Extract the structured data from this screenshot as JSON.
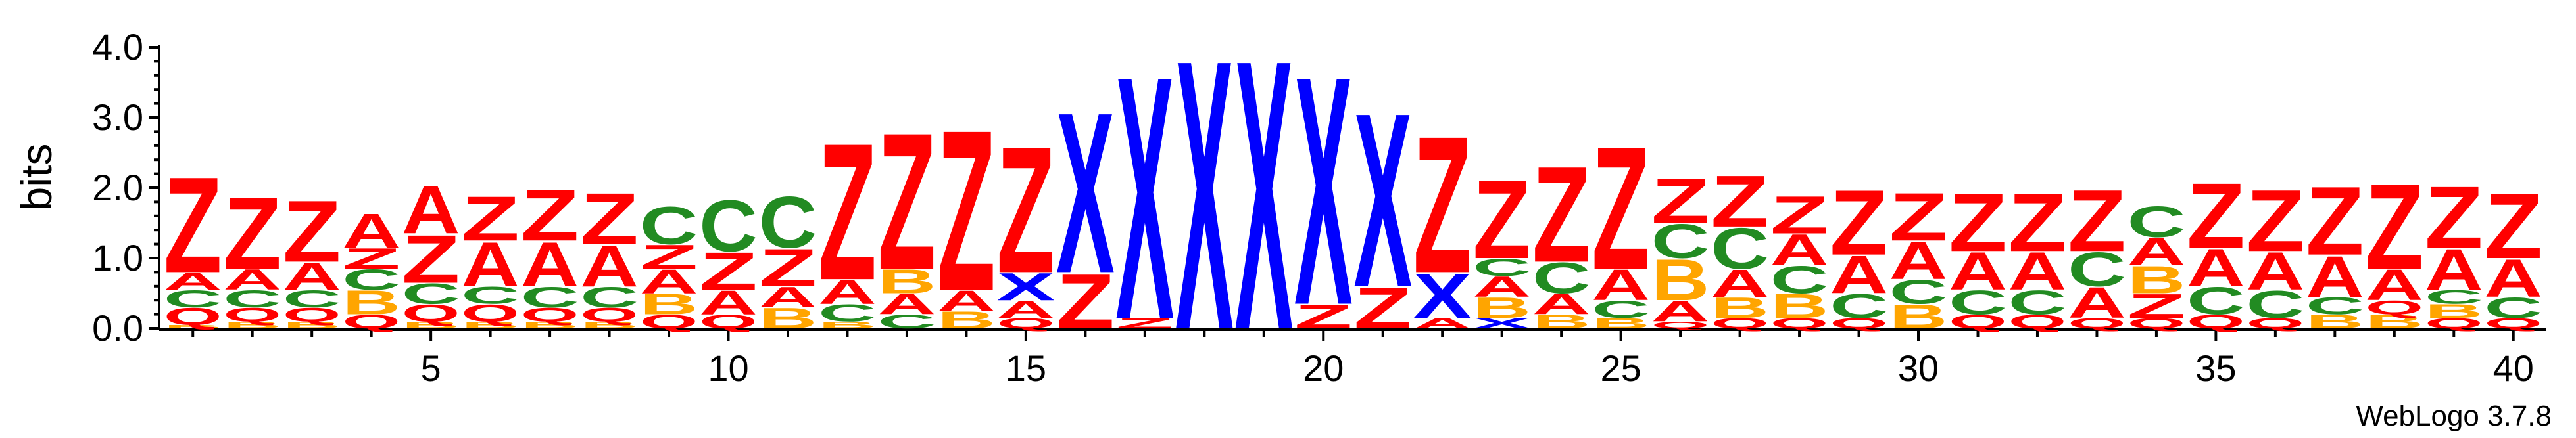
{
  "chart_data": {
    "type": "sequence-logo",
    "ylabel": "bits",
    "ylim": [
      0,
      4.0
    ],
    "yticks": [
      "0.0",
      "1.0",
      "2.0",
      "3.0",
      "4.0"
    ],
    "xlim": [
      1,
      40
    ],
    "xticks": [
      5,
      10,
      15,
      20,
      25,
      30,
      35,
      40
    ],
    "credit": "WebLogo 3.7.8",
    "colors": {
      "Z": "#ff0000",
      "A": "#ff0000",
      "Q": "#ff0000",
      "X": "#0000ff",
      "C": "#228b22",
      "B": "#ffa500"
    },
    "positions": [
      {
        "pos": 1,
        "stack": [
          [
            "B",
            0.05
          ],
          [
            "Q",
            0.25
          ],
          [
            "C",
            0.25
          ],
          [
            "A",
            0.25
          ],
          [
            "Z",
            1.4
          ]
        ]
      },
      {
        "pos": 2,
        "stack": [
          [
            "B",
            0.1
          ],
          [
            "Q",
            0.2
          ],
          [
            "C",
            0.25
          ],
          [
            "A",
            0.3
          ],
          [
            "Z",
            1.05
          ]
        ]
      },
      {
        "pos": 3,
        "stack": [
          [
            "B",
            0.1
          ],
          [
            "Q",
            0.2
          ],
          [
            "C",
            0.25
          ],
          [
            "A",
            0.4
          ],
          [
            "Z",
            0.9
          ]
        ]
      },
      {
        "pos": 4,
        "stack": [
          [
            "Q",
            0.2
          ],
          [
            "B",
            0.35
          ],
          [
            "C",
            0.3
          ],
          [
            "Z",
            0.3
          ],
          [
            "A",
            0.5
          ]
        ]
      },
      {
        "pos": 5,
        "stack": [
          [
            "B",
            0.1
          ],
          [
            "Q",
            0.25
          ],
          [
            "C",
            0.3
          ],
          [
            "Z",
            0.7
          ],
          [
            "A",
            0.7
          ]
        ]
      },
      {
        "pos": 6,
        "stack": [
          [
            "B",
            0.1
          ],
          [
            "Q",
            0.25
          ],
          [
            "C",
            0.25
          ],
          [
            "A",
            0.65
          ],
          [
            "Z",
            0.65
          ]
        ]
      },
      {
        "pos": 7,
        "stack": [
          [
            "B",
            0.1
          ],
          [
            "Q",
            0.2
          ],
          [
            "C",
            0.3
          ],
          [
            "A",
            0.65
          ],
          [
            "Z",
            0.75
          ]
        ]
      },
      {
        "pos": 8,
        "stack": [
          [
            "B",
            0.1
          ],
          [
            "Q",
            0.2
          ],
          [
            "C",
            0.3
          ],
          [
            "A",
            0.6
          ],
          [
            "Z",
            0.75
          ]
        ]
      },
      {
        "pos": 9,
        "stack": [
          [
            "Q",
            0.2
          ],
          [
            "B",
            0.3
          ],
          [
            "A",
            0.35
          ],
          [
            "Z",
            0.35
          ],
          [
            "C",
            0.55
          ]
        ]
      },
      {
        "pos": 10,
        "stack": [
          [
            "Q",
            0.2
          ],
          [
            "A",
            0.35
          ],
          [
            "Z",
            0.55
          ],
          [
            "C",
            0.75
          ]
        ]
      },
      {
        "pos": 11,
        "stack": [
          [
            "B",
            0.3
          ],
          [
            "A",
            0.3
          ],
          [
            "Z",
            0.55
          ],
          [
            "C",
            0.75
          ]
        ]
      },
      {
        "pos": 12,
        "stack": [
          [
            "B",
            0.1
          ],
          [
            "C",
            0.25
          ],
          [
            "A",
            0.35
          ],
          [
            "Z",
            2.0
          ]
        ]
      },
      {
        "pos": 13,
        "stack": [
          [
            "C",
            0.2
          ],
          [
            "A",
            0.3
          ],
          [
            "B",
            0.35
          ],
          [
            "Z",
            2.0
          ]
        ]
      },
      {
        "pos": 14,
        "stack": [
          [
            "B",
            0.25
          ],
          [
            "A",
            0.3
          ],
          [
            "Z",
            2.35
          ]
        ]
      },
      {
        "pos": 15,
        "stack": [
          [
            "Q",
            0.15
          ],
          [
            "A",
            0.25
          ],
          [
            "X",
            0.4
          ],
          [
            "Z",
            1.85
          ]
        ]
      },
      {
        "pos": 16,
        "stack": [
          [
            "Z",
            0.8
          ],
          [
            "X",
            2.35
          ]
        ]
      },
      {
        "pos": 17,
        "stack": [
          [
            "Z",
            0.15
          ],
          [
            "X",
            3.55
          ]
        ]
      },
      {
        "pos": 18,
        "stack": [
          [
            "X",
            3.95
          ]
        ]
      },
      {
        "pos": 19,
        "stack": [
          [
            "X",
            3.95
          ]
        ]
      },
      {
        "pos": 20,
        "stack": [
          [
            "Z",
            0.35
          ],
          [
            "X",
            3.35
          ]
        ]
      },
      {
        "pos": 21,
        "stack": [
          [
            "Z",
            0.6
          ],
          [
            "X",
            2.55
          ]
        ]
      },
      {
        "pos": 22,
        "stack": [
          [
            "A",
            0.15
          ],
          [
            "X",
            0.65
          ],
          [
            "Z",
            2.0
          ]
        ]
      },
      {
        "pos": 23,
        "stack": [
          [
            "X",
            0.15
          ],
          [
            "B",
            0.3
          ],
          [
            "A",
            0.3
          ],
          [
            "C",
            0.25
          ],
          [
            "Z",
            1.15
          ]
        ]
      },
      {
        "pos": 24,
        "stack": [
          [
            "B",
            0.2
          ],
          [
            "A",
            0.3
          ],
          [
            "C",
            0.45
          ],
          [
            "Z",
            1.4
          ]
        ]
      },
      {
        "pos": 25,
        "stack": [
          [
            "B",
            0.15
          ],
          [
            "C",
            0.25
          ],
          [
            "A",
            0.45
          ],
          [
            "Z",
            1.8
          ]
        ]
      },
      {
        "pos": 26,
        "stack": [
          [
            "Q",
            0.1
          ],
          [
            "A",
            0.3
          ],
          [
            "B",
            0.6
          ],
          [
            "C",
            0.5
          ],
          [
            "Z",
            0.65
          ]
        ]
      },
      {
        "pos": 27,
        "stack": [
          [
            "Q",
            0.15
          ],
          [
            "B",
            0.3
          ],
          [
            "A",
            0.4
          ],
          [
            "C",
            0.6
          ],
          [
            "Z",
            0.75
          ]
        ]
      },
      {
        "pos": 28,
        "stack": [
          [
            "Q",
            0.15
          ],
          [
            "B",
            0.35
          ],
          [
            "C",
            0.4
          ],
          [
            "A",
            0.45
          ],
          [
            "Z",
            0.55
          ]
        ]
      },
      {
        "pos": 29,
        "stack": [
          [
            "Q",
            0.15
          ],
          [
            "C",
            0.35
          ],
          [
            "A",
            0.55
          ],
          [
            "Z",
            0.95
          ]
        ]
      },
      {
        "pos": 30,
        "stack": [
          [
            "B",
            0.35
          ],
          [
            "C",
            0.35
          ],
          [
            "A",
            0.55
          ],
          [
            "Z",
            0.7
          ]
        ]
      },
      {
        "pos": 31,
        "stack": [
          [
            "Q",
            0.2
          ],
          [
            "C",
            0.35
          ],
          [
            "A",
            0.55
          ],
          [
            "Z",
            0.85
          ]
        ]
      },
      {
        "pos": 32,
        "stack": [
          [
            "Q",
            0.2
          ],
          [
            "C",
            0.35
          ],
          [
            "A",
            0.55
          ],
          [
            "Z",
            0.85
          ]
        ]
      },
      {
        "pos": 33,
        "stack": [
          [
            "Q",
            0.15
          ],
          [
            "A",
            0.45
          ],
          [
            "C",
            0.5
          ],
          [
            "Z",
            0.9
          ]
        ]
      },
      {
        "pos": 34,
        "stack": [
          [
            "Q",
            0.15
          ],
          [
            "Z",
            0.35
          ],
          [
            "B",
            0.4
          ],
          [
            "A",
            0.4
          ],
          [
            "C",
            0.45
          ]
        ]
      },
      {
        "pos": 35,
        "stack": [
          [
            "Q",
            0.2
          ],
          [
            "C",
            0.4
          ],
          [
            "A",
            0.55
          ],
          [
            "Z",
            0.95
          ]
        ]
      },
      {
        "pos": 36,
        "stack": [
          [
            "Q",
            0.15
          ],
          [
            "C",
            0.4
          ],
          [
            "A",
            0.55
          ],
          [
            "Z",
            0.9
          ]
        ]
      },
      {
        "pos": 37,
        "stack": [
          [
            "B",
            0.2
          ],
          [
            "C",
            0.25
          ],
          [
            "A",
            0.6
          ],
          [
            "Z",
            1.0
          ]
        ]
      },
      {
        "pos": 38,
        "stack": [
          [
            "B",
            0.2
          ],
          [
            "Q",
            0.2
          ],
          [
            "A",
            0.45
          ],
          [
            "Z",
            1.25
          ]
        ]
      },
      {
        "pos": 39,
        "stack": [
          [
            "Q",
            0.15
          ],
          [
            "B",
            0.2
          ],
          [
            "C",
            0.2
          ],
          [
            "A",
            0.6
          ],
          [
            "Z",
            0.9
          ]
        ]
      },
      {
        "pos": 40,
        "stack": [
          [
            "Q",
            0.15
          ],
          [
            "C",
            0.3
          ],
          [
            "A",
            0.55
          ],
          [
            "Z",
            0.95
          ]
        ]
      }
    ]
  }
}
